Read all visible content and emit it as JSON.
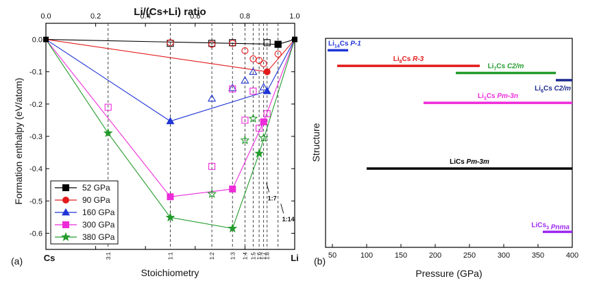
{
  "chart_data": [
    {
      "panel_label": "(a)",
      "type": "line",
      "title_top_axis": "Li/(Cs+Li) ratio",
      "xlabel": "Stoichiometry",
      "ylabel": "Formation enthalpy (eV/atom)",
      "xlim": [
        0,
        1
      ],
      "ylim": [
        -0.65,
        0.05
      ],
      "top_ticks": [
        {
          "v": 0,
          "label": "0.0"
        },
        {
          "v": 0.2,
          "label": "0.2"
        },
        {
          "v": 0.4,
          "label": "0.4"
        },
        {
          "v": 0.6,
          "label": "0.6"
        },
        {
          "v": 0.8,
          "label": "0.8"
        },
        {
          "v": 1,
          "label": "1.0"
        }
      ],
      "y_ticks": [
        {
          "v": 0,
          "label": "0.0"
        },
        {
          "v": -0.1,
          "label": "-0.1"
        },
        {
          "v": -0.2,
          "label": "-0.2"
        },
        {
          "v": -0.3,
          "label": "-0.3"
        },
        {
          "v": -0.4,
          "label": "-0.4"
        },
        {
          "v": -0.5,
          "label": "-0.5"
        },
        {
          "v": -0.6,
          "label": "-0.6"
        }
      ],
      "end_labels": {
        "left": "Cs",
        "right": "Li"
      },
      "stoichiometry_ticks": [
        {
          "v": 0.25,
          "label": "3:1"
        },
        {
          "v": 0.5,
          "label": "1:1"
        },
        {
          "v": 0.667,
          "label": "1:2"
        },
        {
          "v": 0.75,
          "label": "1:3"
        },
        {
          "v": 0.8,
          "label": "1:4"
        },
        {
          "v": 0.833,
          "label": "1:5"
        },
        {
          "v": 0.857,
          "label": "1:6"
        },
        {
          "v": 0.875,
          "label": "1:7"
        },
        {
          "v": 0.889,
          "label": "1:8"
        }
      ],
      "extra_dashed_lines": [
        0.933
      ],
      "annotations": [
        {
          "label": "1:7",
          "x": 0.875,
          "y": -0.49
        },
        {
          "label": "1:14",
          "x": 0.933,
          "y": -0.555
        }
      ],
      "series": [
        {
          "name": "52 GPa",
          "color": "#000000",
          "marker": "square",
          "hull": [
            [
              0,
              0
            ],
            [
              0.933,
              -0.015
            ],
            [
              1,
              0
            ]
          ],
          "open": [
            [
              0.5,
              -0.012
            ],
            [
              0.667,
              -0.012
            ],
            [
              0.75,
              -0.01
            ],
            [
              0.889,
              -0.01
            ],
            [
              0.933,
              -0.015
            ]
          ]
        },
        {
          "name": "90 GPa",
          "color": "#e31a1c",
          "marker": "circle",
          "hull": [
            [
              0,
              0
            ],
            [
              0.889,
              -0.1
            ],
            [
              1,
              0
            ]
          ],
          "open": [
            [
              0.5,
              -0.01
            ],
            [
              0.667,
              -0.015
            ],
            [
              0.75,
              -0.012
            ],
            [
              0.8,
              -0.035
            ],
            [
              0.833,
              -0.06
            ],
            [
              0.857,
              -0.065
            ],
            [
              0.875,
              -0.075
            ],
            [
              0.933,
              -0.045
            ]
          ]
        },
        {
          "name": "160 GPa",
          "color": "#1f35d6",
          "marker": "triangle",
          "hull": [
            [
              0,
              0
            ],
            [
              0.5,
              -0.253
            ],
            [
              0.889,
              -0.16
            ],
            [
              1,
              0
            ]
          ],
          "open": [
            [
              0.667,
              -0.183
            ],
            [
              0.75,
              -0.15
            ],
            [
              0.8,
              -0.127
            ],
            [
              0.833,
              -0.1
            ],
            [
              0.875,
              -0.148
            ]
          ]
        },
        {
          "name": "300 GPa",
          "color": "#ee2bd9",
          "marker": "square",
          "hull": [
            [
              0,
              0
            ],
            [
              0.5,
              -0.487
            ],
            [
              0.75,
              -0.463
            ],
            [
              0.875,
              -0.255
            ],
            [
              1,
              0
            ]
          ],
          "open": [
            [
              0.25,
              -0.21
            ],
            [
              0.667,
              -0.393
            ],
            [
              0.75,
              -0.153
            ],
            [
              0.8,
              -0.25
            ],
            [
              0.833,
              -0.16
            ],
            [
              0.857,
              -0.275
            ],
            [
              0.889,
              -0.23
            ]
          ]
        },
        {
          "name": "380 GPa",
          "color": "#239b2c",
          "marker": "star",
          "hull": [
            [
              0,
              0
            ],
            [
              0.25,
              -0.29
            ],
            [
              0.5,
              -0.551
            ],
            [
              0.75,
              -0.585
            ],
            [
              0.857,
              -0.353
            ],
            [
              1,
              0
            ]
          ],
          "open": [
            [
              0.667,
              -0.478
            ],
            [
              0.8,
              -0.312
            ],
            [
              0.833,
              -0.245
            ],
            [
              0.875,
              -0.305
            ]
          ]
        }
      ]
    },
    {
      "panel_label": "(b)",
      "type": "bar",
      "orientation": "horizontal",
      "xlabel": "Pressure (GPa)",
      "ylabel": "Structure",
      "xlim": [
        40,
        400
      ],
      "x_ticks": [
        50,
        100,
        150,
        200,
        250,
        300,
        350,
        400
      ],
      "bars": [
        {
          "phase": "Li14Cs",
          "sub": "14",
          "formula_pre": "Li",
          "formula_post": "Cs",
          "group": "P-1",
          "start": 43,
          "end": 73,
          "row": 1.0,
          "color": "#1f35d6"
        },
        {
          "phase": "Li8Cs",
          "sub": "8",
          "formula_pre": "Li",
          "formula_post": "Cs",
          "group": "R-3",
          "start": 57,
          "end": 265,
          "row": 2.3,
          "color": "#e31a1c"
        },
        {
          "phase": "Li7Cs",
          "sub": "7",
          "formula_pre": "Li",
          "formula_post": "Cs",
          "group": "C2/m",
          "start": 230,
          "end": 376,
          "row": 2.9,
          "color": "#239b2c"
        },
        {
          "phase": "Li6Cs",
          "sub": "6",
          "formula_pre": "Li",
          "formula_post": "Cs",
          "group": "C2/m",
          "start": 376,
          "end": 400,
          "row": 3.5,
          "color": "#1c2a8e"
        },
        {
          "phase": "Li3Cs",
          "sub": "3",
          "formula_pre": "Li",
          "formula_post": "Cs",
          "group": "Pm-3n",
          "start": 183,
          "end": 400,
          "row": 5.4,
          "color": "#ee2bd9"
        },
        {
          "phase": "LiCs",
          "sub": "",
          "formula_pre": "LiCs",
          "formula_post": "",
          "group": "Pm-3m",
          "start": 100,
          "end": 400,
          "row": 10.9,
          "color": "#000000"
        },
        {
          "phase": "LiCs3",
          "sub": "3",
          "formula_pre": "LiCs",
          "formula_post": "",
          "group": "Pnma",
          "start": 357,
          "end": 400,
          "row": 16.2,
          "color": "#9c27f0"
        }
      ],
      "rows_range": [
        0,
        17.5
      ]
    }
  ]
}
